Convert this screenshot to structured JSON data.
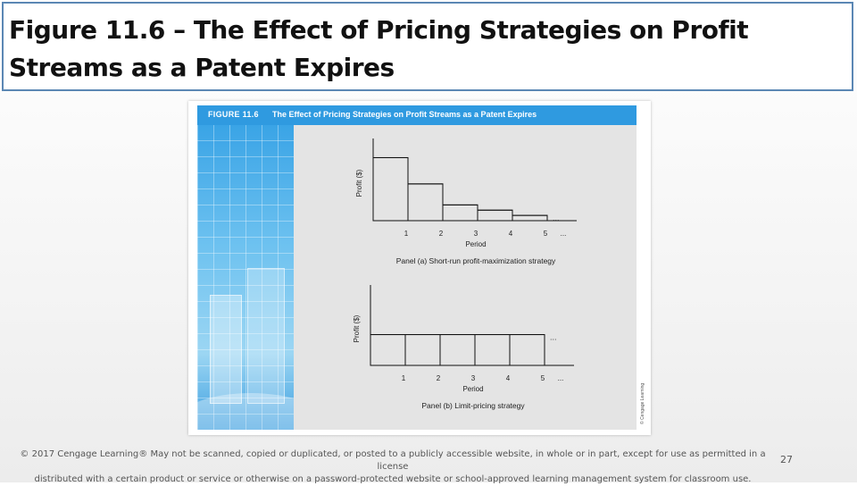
{
  "slide": {
    "title_line1": "Figure 11.6 – The Effect of Pricing Strategies on Profit",
    "title_line2": "Streams as a Patent Expires",
    "footer_line1": "© 2017 Cengage Learning® May not be scanned, copied or duplicated, or posted to a publicly accessible website, in whole or in part, except for use as permitted in a license",
    "footer_line2": "distributed with a certain product or service or otherwise on a password-protected website or school-approved learning management system for classroom use.",
    "page_number": "27"
  },
  "figure": {
    "label": "FIGURE 11.6",
    "header_text": "The Effect of Pricing Strategies on Profit Streams as a Patent Expires",
    "credit": "© Cengage Learning"
  },
  "chart_data": [
    {
      "type": "bar",
      "title": "Panel (a) Short-run profit-maximization strategy",
      "xlabel": "Period",
      "ylabel": "Profit ($)",
      "categories": [
        "1",
        "2",
        "3",
        "4",
        "5"
      ],
      "values": [
        84,
        49,
        21,
        14,
        7
      ],
      "ylim": [
        0,
        100
      ],
      "continuation": "..."
    },
    {
      "type": "bar",
      "title": "Panel (b) Limit-pricing strategy",
      "xlabel": "Period",
      "ylabel": "Profit ($)",
      "categories": [
        "1",
        "2",
        "3",
        "4",
        "5"
      ],
      "values": [
        42,
        42,
        42,
        42,
        42
      ],
      "ylim": [
        0,
        100
      ],
      "continuation": "..."
    }
  ]
}
